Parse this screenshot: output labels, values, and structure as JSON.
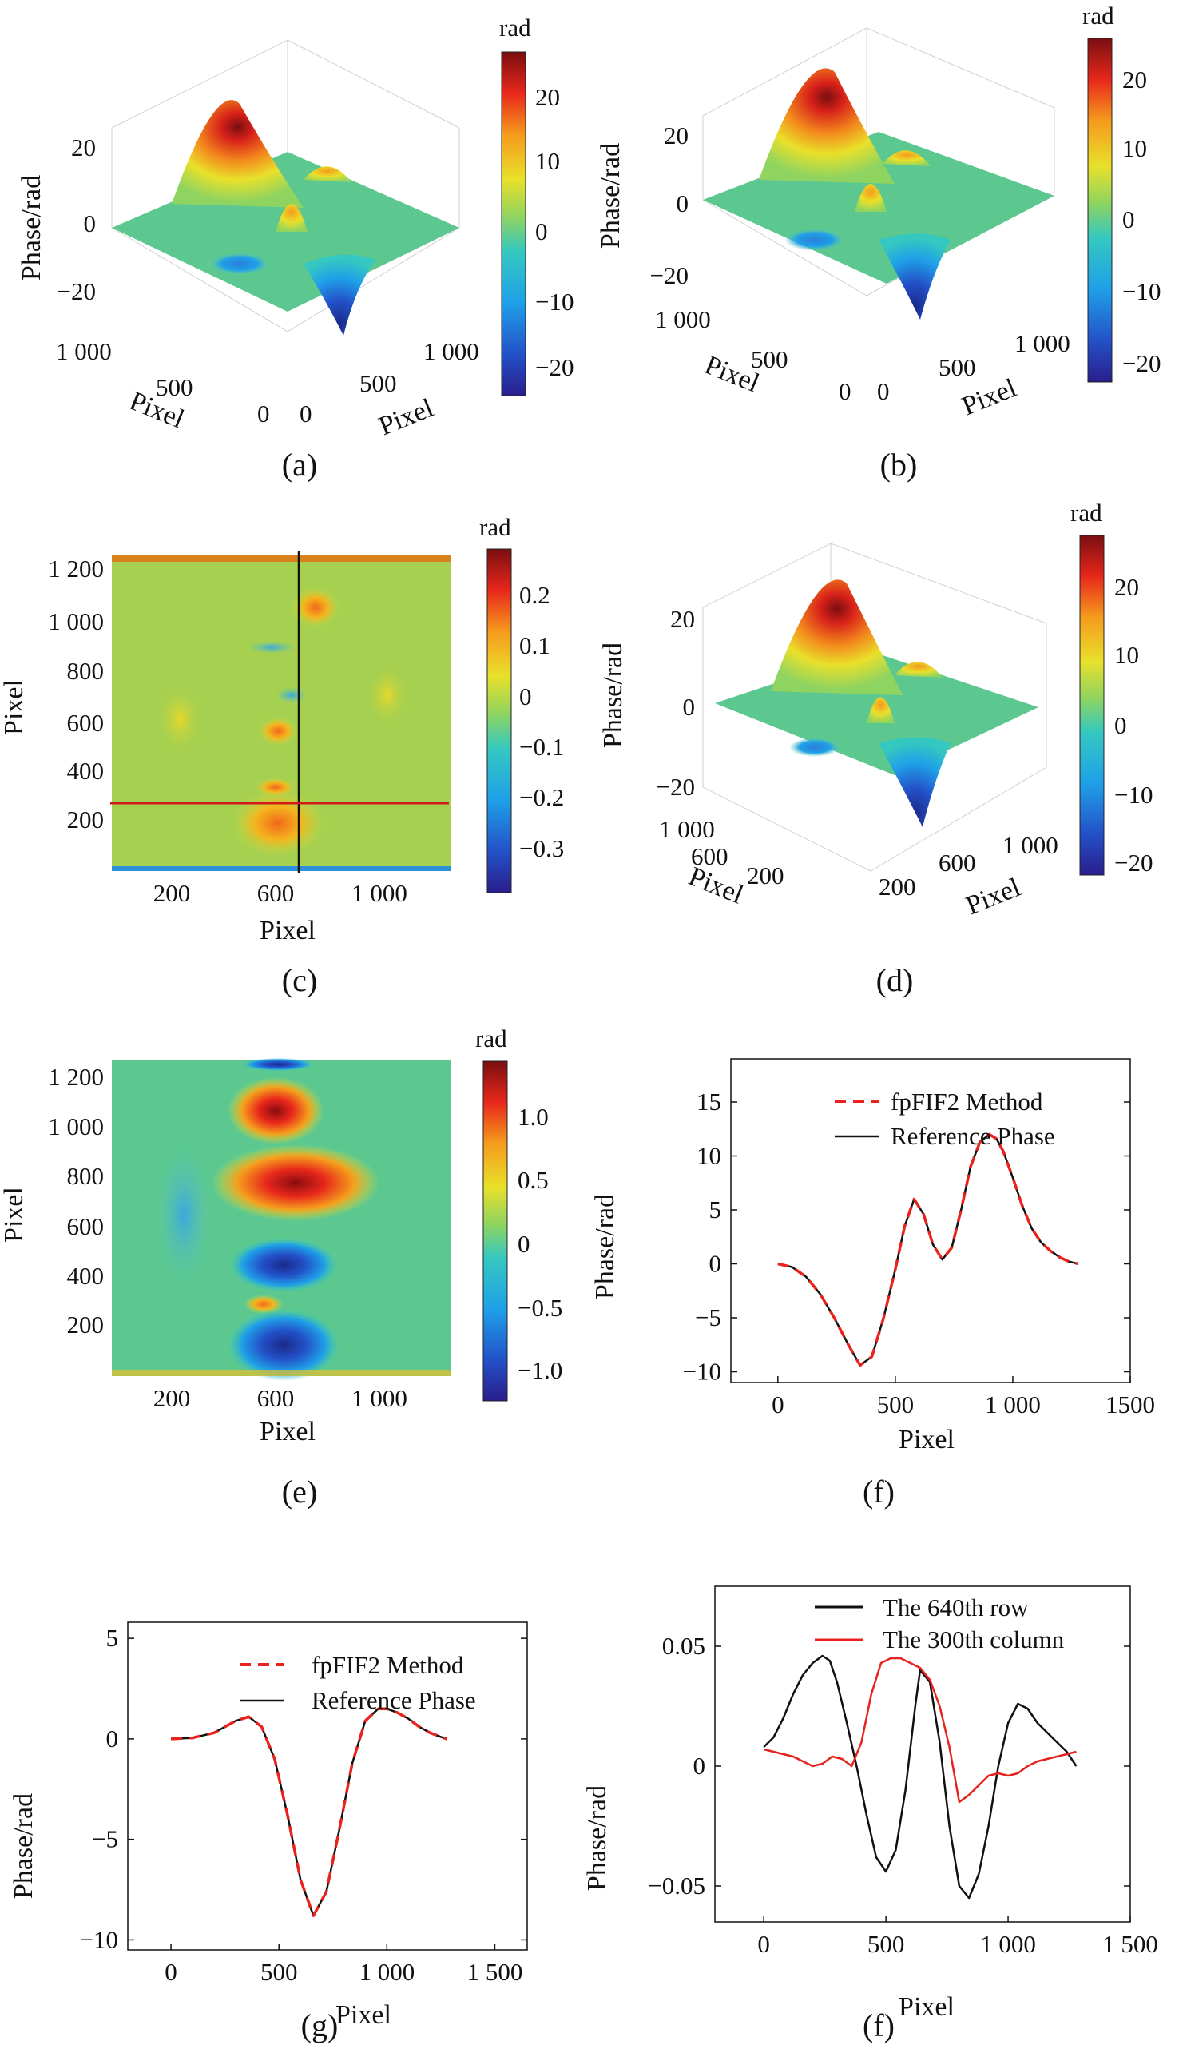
{
  "colorbar_colors": [
    "#2a1e8c",
    "#2351c8",
    "#1fa0e8",
    "#35c8c0",
    "#8fd460",
    "#e9e02a",
    "#f59a1d",
    "#e8271b",
    "#7a0e10"
  ],
  "panels": [
    {
      "panel_label": "(a)",
      "chart_data": {
        "type": "surface3d",
        "zlabel": "Phase/rad",
        "xlabel": "Pixel",
        "ylabel": "Pixel",
        "z_ticks": [
          "20",
          "0",
          "−20"
        ],
        "x_ticks": [
          "1 000",
          "500",
          "0"
        ],
        "y_ticks": [
          "0",
          "500",
          "1 000"
        ],
        "colorbar_unit": "rad",
        "colorbar_ticks": [
          "20",
          "10",
          "0",
          "−10",
          "−20"
        ],
        "peak_value": 27,
        "trough_value": -23
      }
    },
    {
      "panel_label": "(b)",
      "chart_data": {
        "type": "surface3d",
        "zlabel": "Phase/rad",
        "xlabel": "Pixel",
        "ylabel": "Pixel",
        "z_ticks": [
          "20",
          "0",
          "−20"
        ],
        "x_ticks": [
          "1 000",
          "500",
          "0"
        ],
        "y_ticks": [
          "0",
          "500",
          "1 000"
        ],
        "colorbar_unit": "rad",
        "colorbar_ticks": [
          "20",
          "10",
          "0",
          "−10",
          "−20"
        ],
        "peak_value": 27,
        "trough_value": -23
      }
    },
    {
      "panel_label": "(c)",
      "chart_data": {
        "type": "heatmap",
        "xlabel": "Pixel",
        "ylabel": "Pixel",
        "x_ticks": [
          "200",
          "600",
          "1 000"
        ],
        "y_ticks": [
          "1 200",
          "1 000",
          "800",
          "600",
          "400",
          "200"
        ],
        "colorbar_unit": "rad",
        "colorbar_ticks": [
          "0.2",
          "0.1",
          "0",
          "−0.1",
          "−0.2",
          "−0.3"
        ],
        "range": [
          -0.38,
          0.28
        ],
        "vertical_line_x": 640,
        "horizontal_line_y": 300
      }
    },
    {
      "panel_label": "(d)",
      "chart_data": {
        "type": "surface3d",
        "zlabel": "Phase/rad",
        "xlabel": "Pixel",
        "ylabel": "Pixel",
        "z_ticks": [
          "20",
          "0",
          "−20"
        ],
        "x_ticks": [
          "1 000",
          "600",
          "200"
        ],
        "y_ticks": [
          "200",
          "600",
          "1 000"
        ],
        "colorbar_unit": "rad",
        "colorbar_ticks": [
          "20",
          "10",
          "0",
          "−10",
          "−20"
        ],
        "peak_value": 27,
        "trough_value": -23
      }
    },
    {
      "panel_label": "(e)",
      "chart_data": {
        "type": "heatmap",
        "xlabel": "Pixel",
        "ylabel": "Pixel",
        "x_ticks": [
          "200",
          "600",
          "1 000"
        ],
        "y_ticks": [
          "1 200",
          "1 000",
          "800",
          "600",
          "400",
          "200"
        ],
        "colorbar_unit": "rad",
        "colorbar_ticks": [
          "1.0",
          "0.5",
          "0",
          "−0.5",
          "−1.0"
        ],
        "range": [
          -1.35,
          1.35
        ]
      }
    },
    {
      "panel_label": "(f)",
      "chart_data": {
        "type": "line",
        "xlabel": "Pixel",
        "ylabel": "Phase/rad",
        "xlim": [
          -200,
          1500
        ],
        "ylim": [
          -11,
          19
        ],
        "x_ticks": [
          "0",
          "500",
          "1 000",
          "1500"
        ],
        "y_ticks": [
          "15",
          "10",
          "5",
          "0",
          "−5",
          "−10"
        ],
        "series": [
          {
            "name": "fpFIF2 Method",
            "color": "#e8231e",
            "style": "dashed",
            "x": [
              0,
              60,
              120,
              180,
              240,
              300,
              350,
              400,
              450,
              500,
              540,
              580,
              620,
              660,
              700,
              740,
              780,
              820,
              860,
              900,
              930,
              960,
              1000,
              1040,
              1080,
              1120,
              1160,
              1200,
              1240,
              1279
            ],
            "y": [
              0,
              -0.3,
              -1.2,
              -2.8,
              -5.0,
              -7.5,
              -9.4,
              -8.6,
              -5.0,
              -0.5,
              3.5,
              6.0,
              4.6,
              1.8,
              0.4,
              1.5,
              5.0,
              9.0,
              11.3,
              12.0,
              11.6,
              10.4,
              8.0,
              5.4,
              3.3,
              2.0,
              1.2,
              0.6,
              0.2,
              0.0
            ]
          },
          {
            "name": "Reference Phase",
            "color": "#111111",
            "style": "solid",
            "x": [
              0,
              60,
              120,
              180,
              240,
              300,
              350,
              400,
              450,
              500,
              540,
              580,
              620,
              660,
              700,
              740,
              780,
              820,
              860,
              900,
              930,
              960,
              1000,
              1040,
              1080,
              1120,
              1160,
              1200,
              1240,
              1279
            ],
            "y": [
              0,
              -0.3,
              -1.2,
              -2.8,
              -5.0,
              -7.5,
              -9.4,
              -8.6,
              -5.0,
              -0.5,
              3.5,
              6.0,
              4.6,
              1.8,
              0.4,
              1.5,
              5.0,
              9.0,
              11.3,
              12.0,
              11.6,
              10.4,
              8.0,
              5.4,
              3.3,
              2.0,
              1.2,
              0.6,
              0.2,
              0.0
            ]
          }
        ]
      }
    },
    {
      "panel_label": "(g)",
      "chart_data": {
        "type": "line",
        "xlabel": "Pixel",
        "ylabel": "Phase/rad",
        "xlim": [
          -200,
          1650
        ],
        "ylim": [
          -10.5,
          5.8
        ],
        "x_ticks": [
          "0",
          "500",
          "1 000",
          "1 500"
        ],
        "y_ticks": [
          "5",
          "0",
          "−5",
          "−10"
        ],
        "series": [
          {
            "name": "fpFIF2 Method",
            "color": "#e8231e",
            "style": "dashed",
            "x": [
              0,
              100,
              200,
              300,
              360,
              420,
              480,
              540,
              600,
              660,
              720,
              780,
              840,
              900,
              960,
              1000,
              1050,
              1100,
              1150,
              1200,
              1250,
              1279
            ],
            "y": [
              0,
              0.05,
              0.3,
              0.9,
              1.1,
              0.6,
              -1.0,
              -3.8,
              -7.0,
              -8.8,
              -7.6,
              -4.5,
              -1.2,
              0.9,
              1.5,
              1.5,
              1.3,
              1.0,
              0.6,
              0.3,
              0.1,
              0.0
            ]
          },
          {
            "name": "Reference Phase",
            "color": "#111111",
            "style": "solid",
            "x": [
              0,
              100,
              200,
              300,
              360,
              420,
              480,
              540,
              600,
              660,
              720,
              780,
              840,
              900,
              960,
              1000,
              1050,
              1100,
              1150,
              1200,
              1250,
              1279
            ],
            "y": [
              0,
              0.05,
              0.3,
              0.9,
              1.1,
              0.6,
              -1.0,
              -3.8,
              -7.0,
              -8.8,
              -7.6,
              -4.5,
              -1.2,
              0.9,
              1.5,
              1.5,
              1.3,
              1.0,
              0.6,
              0.3,
              0.1,
              0.0
            ]
          }
        ]
      }
    },
    {
      "panel_label": "(f)",
      "chart_data": {
        "type": "line",
        "xlabel": "Pixel",
        "ylabel": "Phase/rad",
        "xlim": [
          -200,
          1500
        ],
        "ylim": [
          -0.065,
          0.075
        ],
        "x_ticks": [
          "0",
          "500",
          "1 000",
          "1 500"
        ],
        "y_ticks": [
          "0.05",
          "0",
          "−0.05"
        ],
        "series": [
          {
            "name": "The 640th row",
            "color": "#111111",
            "style": "solid",
            "x": [
              0,
              40,
              80,
              120,
              160,
              200,
              240,
              270,
              300,
              340,
              380,
              420,
              460,
              500,
              540,
              580,
              620,
              640,
              680,
              720,
              760,
              800,
              840,
              880,
              920,
              960,
              1000,
              1040,
              1080,
              1120,
              1160,
              1200,
              1240,
              1279
            ],
            "y": [
              0.008,
              0.012,
              0.02,
              0.03,
              0.038,
              0.043,
              0.046,
              0.044,
              0.035,
              0.018,
              0.0,
              -0.02,
              -0.038,
              -0.044,
              -0.035,
              -0.01,
              0.025,
              0.04,
              0.035,
              0.01,
              -0.025,
              -0.05,
              -0.055,
              -0.045,
              -0.025,
              0.0,
              0.018,
              0.026,
              0.024,
              0.018,
              0.014,
              0.01,
              0.006,
              0.0
            ]
          },
          {
            "name": "The 300th column",
            "color": "#e8231e",
            "style": "solid",
            "x": [
              0,
              40,
              80,
              120,
              160,
              200,
              240,
              280,
              320,
              360,
              400,
              440,
              480,
              520,
              560,
              600,
              640,
              680,
              720,
              760,
              800,
              840,
              880,
              920,
              960,
              1000,
              1040,
              1080,
              1120,
              1160,
              1200,
              1240,
              1279
            ],
            "y": [
              0.007,
              0.006,
              0.005,
              0.004,
              0.002,
              0.0,
              0.001,
              0.004,
              0.003,
              0.0,
              0.01,
              0.03,
              0.043,
              0.045,
              0.045,
              0.043,
              0.041,
              0.036,
              0.025,
              0.008,
              -0.015,
              -0.012,
              -0.008,
              -0.004,
              -0.003,
              -0.004,
              -0.003,
              0.0,
              0.002,
              0.003,
              0.004,
              0.005,
              0.006
            ]
          }
        ]
      }
    }
  ]
}
